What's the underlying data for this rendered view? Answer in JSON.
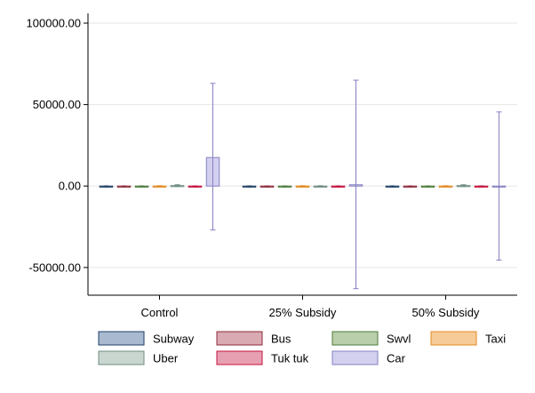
{
  "chart_data": {
    "type": "bar",
    "categories": [
      "Control",
      "25% Subsidy",
      "50% Subsidy"
    ],
    "ylim": [
      -67000,
      106000
    ],
    "yticks": [
      100000,
      50000,
      0,
      -50000
    ],
    "ytick_labels": [
      "100000.00",
      "50000.00",
      "0.00",
      "-50000.00"
    ],
    "grid": true,
    "legend_position": "bottom",
    "legend_columns": 4,
    "title": "",
    "xlabel": "",
    "ylabel": "",
    "series": [
      {
        "name": "Subway",
        "fill": "#a9bad0",
        "stroke": "#1f3f66",
        "values": [
          -300,
          -300,
          -300
        ],
        "ci_low": [
          -700,
          -700,
          -700
        ],
        "ci_high": [
          100,
          100,
          100
        ]
      },
      {
        "name": "Bus",
        "fill": "#d9aab2",
        "stroke": "#8f2a3c",
        "values": [
          -300,
          -300,
          -300
        ],
        "ci_low": [
          -700,
          -700,
          -700
        ],
        "ci_high": [
          100,
          100,
          100
        ]
      },
      {
        "name": "Swvl",
        "fill": "#b9ceaa",
        "stroke": "#4c7a3a",
        "values": [
          -300,
          -300,
          -300
        ],
        "ci_low": [
          -700,
          -700,
          -700
        ],
        "ci_high": [
          100,
          100,
          100
        ]
      },
      {
        "name": "Taxi",
        "fill": "#f7cb98",
        "stroke": "#e38b22",
        "values": [
          -100,
          -100,
          -100
        ],
        "ci_low": [
          -300,
          -300,
          -300
        ],
        "ci_high": [
          200,
          200,
          200
        ]
      },
      {
        "name": "Uber",
        "fill": "#c9d6cf",
        "stroke": "#6f8c80",
        "values": [
          300,
          -200,
          300
        ],
        "ci_low": [
          -100,
          -500,
          -100
        ],
        "ci_high": [
          800,
          200,
          800
        ]
      },
      {
        "name": "Tuk tuk",
        "fill": "#e79fb2",
        "stroke": "#c4103c",
        "values": [
          -300,
          -300,
          -300
        ],
        "ci_low": [
          -700,
          -700,
          -700
        ],
        "ci_high": [
          100,
          100,
          100
        ]
      },
      {
        "name": "Car",
        "fill": "#d2d0ee",
        "stroke": "#8680c4",
        "values": [
          17500,
          800,
          -100
        ],
        "ci_low": [
          -27000,
          -63000,
          -45500
        ],
        "ci_high": [
          63000,
          65000,
          45500
        ]
      }
    ]
  }
}
